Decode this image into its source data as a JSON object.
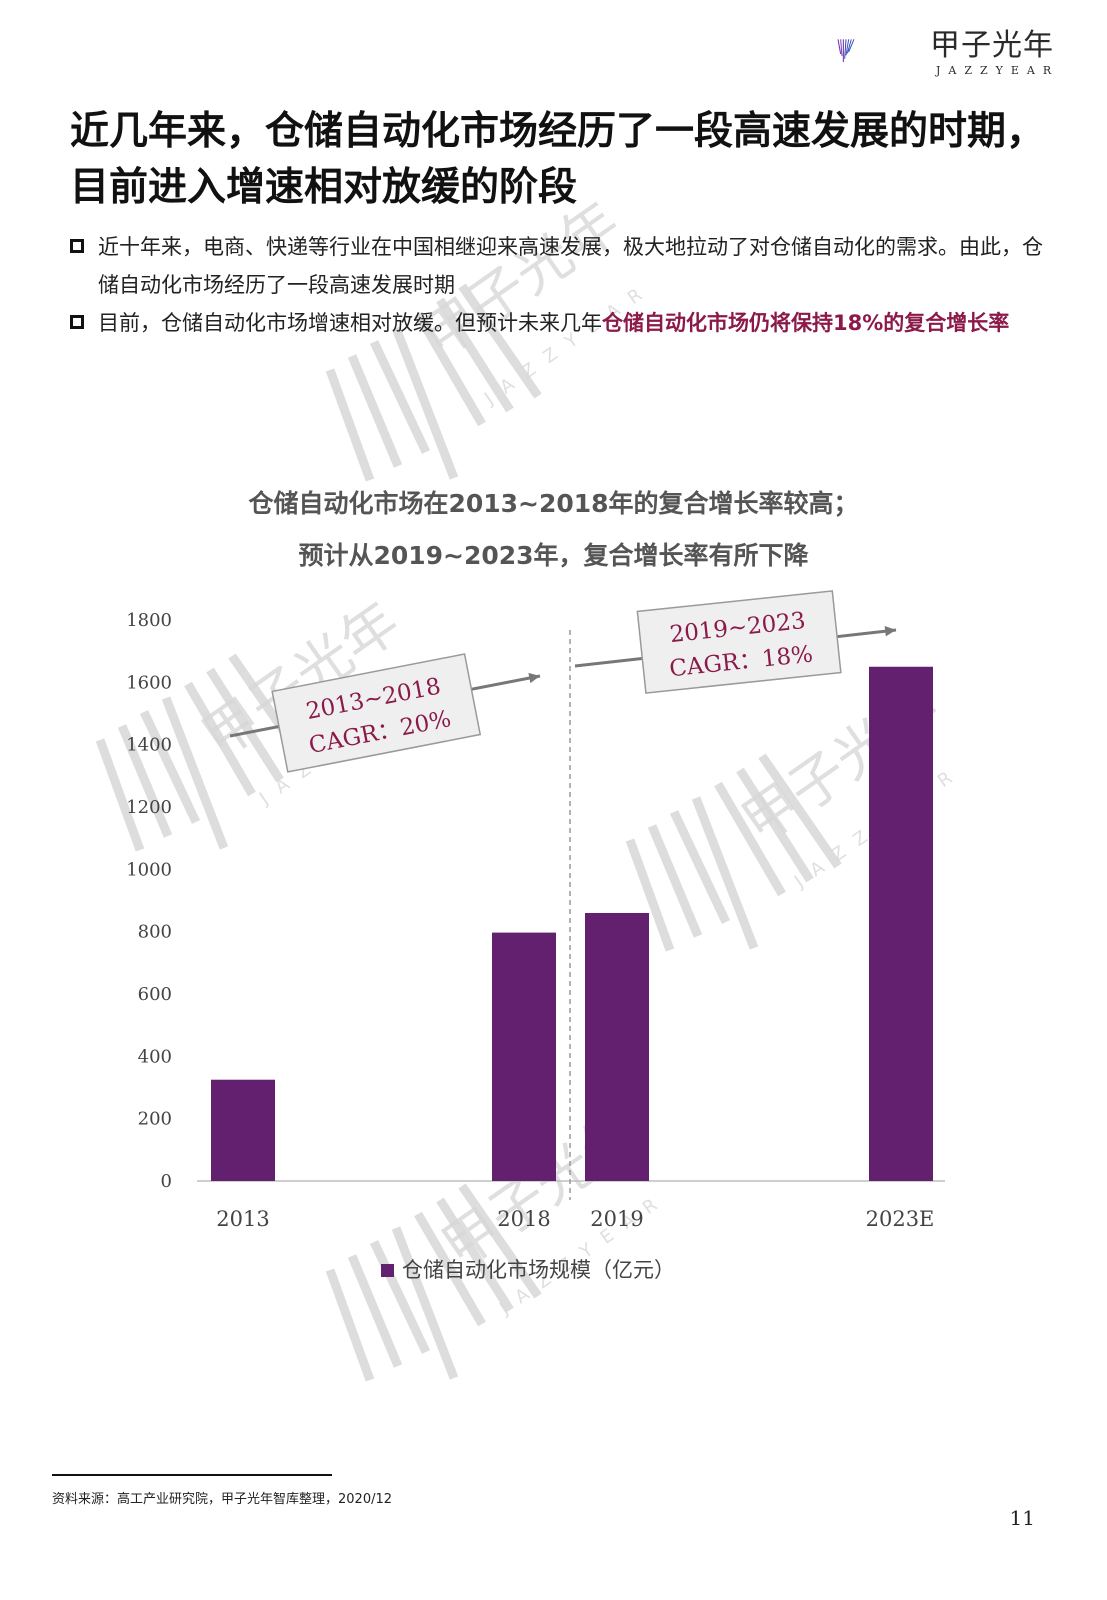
{
  "brand": {
    "name": "甲子光年",
    "subtitle": "JAZZYEAR"
  },
  "headline": "近几年来，仓储自动化市场经历了一段高速发展的时期，目前进入增速相对放缓的阶段",
  "bullets": [
    {
      "text": "近十年来，电商、快递等行业在中国相继迎来高速发展，极大地拉动了对仓储自动化的需求。由此，仓储自动化市场经历了一段高速发展时期",
      "highlight": ""
    },
    {
      "text": "目前，仓储自动化市场增速相对放缓。但预计未来几年",
      "highlight": "仓储自动化市场仍将保持18%的复合增长率"
    }
  ],
  "colors": {
    "bar": "#63206f",
    "highlight": "#8b1a4a",
    "annotation_text": "#8b1a4a",
    "arrow": "#777777"
  },
  "chart_data": {
    "type": "bar",
    "title": "仓储自动化市场在2013~2018年的复合增长率较高；",
    "subtitle": "预计从2019~2023年，复合增长率有所下降",
    "categories": [
      "2013",
      "2018",
      "2019",
      "2023E"
    ],
    "series": [
      {
        "name": "仓储自动化市场规模（亿元）",
        "values": [
          325,
          797,
          860,
          1650
        ]
      }
    ],
    "ylim": [
      0,
      1800
    ],
    "yticks": [
      0,
      200,
      400,
      600,
      800,
      1000,
      1200,
      1400,
      1600,
      1800
    ],
    "grid": false,
    "legend": "bottom",
    "annotations": [
      {
        "line1": "2013~2018",
        "line2": "CAGR：20%"
      },
      {
        "line1": "2019~2023",
        "line2": "CAGR：18%"
      }
    ]
  },
  "footnote": "资料来源：高工产业研究院，甲子光年智库整理，2020/12",
  "page_number": "11"
}
